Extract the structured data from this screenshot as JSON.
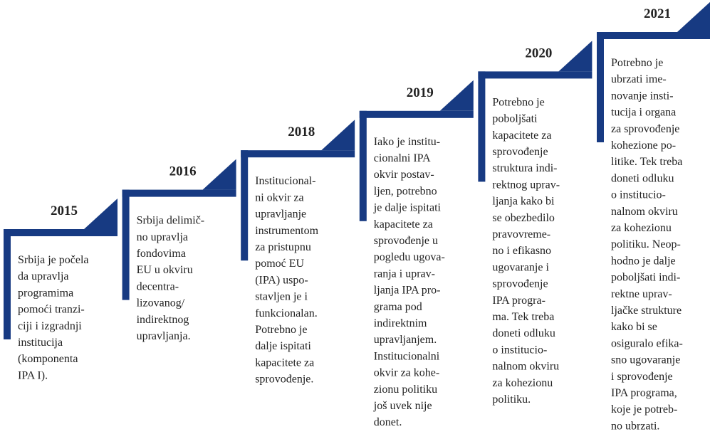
{
  "steps": [
    {
      "year": "2015",
      "lines": [
        "Srbija je počela",
        "da upravlja",
        "programima",
        "pomoći tranzi-",
        "ciji i izgradnji",
        "institucija",
        "(komponenta",
        "IPA I)."
      ]
    },
    {
      "year": "2016",
      "lines": [
        "Srbija delimič-",
        "no upravlja",
        "fondovima",
        "EU u okviru",
        "decentra-",
        "lizovanog/",
        "indirektnog",
        "upravljanja."
      ]
    },
    {
      "year": "2018",
      "lines": [
        "Institucional-",
        "ni okvir za",
        "upravljanje",
        "instrumentom",
        "za pristupnu",
        "pomoć EU",
        "(IPA) uspo-",
        "stavljen je i",
        "funkcionalan.",
        "Potrebno je",
        "dalje ispitati",
        "kapacitete za",
        "sprovođenje."
      ]
    },
    {
      "year": "2019",
      "lines": [
        "Iako je institu-",
        "cionalni IPA",
        "okvir postav-",
        "ljen, potrebno",
        "je dalje ispitati",
        "kapacitete za",
        "sprovođenje u",
        "pogledu ugova-",
        "ranja i uprav-",
        "ljanja IPA pro-",
        "grama pod",
        "indirektnim",
        "upravljanjem.",
        "Institucionalni",
        "okvir za kohe-",
        "zionu politiku",
        "još uvek nije",
        "donet."
      ]
    },
    {
      "year": "2020",
      "lines": [
        "Potrebno je",
        "poboljšati",
        "kapacitete za",
        "sprovođenje",
        "struktura indi-",
        "rektnog uprav-",
        "ljanja kako bi",
        "se obezbedilo",
        "pravovreme-",
        "no i efikasno",
        "ugovaranje i",
        "sprovođenje",
        "IPA progra-",
        "ma. Tek treba",
        "doneti odluku",
        "o institucio-",
        "nalnom okviru",
        "za kohezionu",
        "politiku."
      ]
    },
    {
      "year": "2021",
      "lines": [
        "Potrebno je",
        "ubrzati ime-",
        "novanje insti-",
        "tucija i organa",
        "za sprovođenje",
        "kohezione po-",
        "litike. Tek treba",
        "doneti odluku",
        "o institucio-",
        "nalnom okviru",
        "za kohezionu",
        "politiku. Neop-",
        "hodno je dalje",
        "poboljšati indi-",
        "rektne uprav-",
        "ljačke strukture",
        "kako bi se",
        "osiguralo efika-",
        "sno ugovaranje",
        "i sprovođenje",
        "IPA programa,",
        "koje je potreb-",
        "no ubrzati."
      ]
    }
  ]
}
